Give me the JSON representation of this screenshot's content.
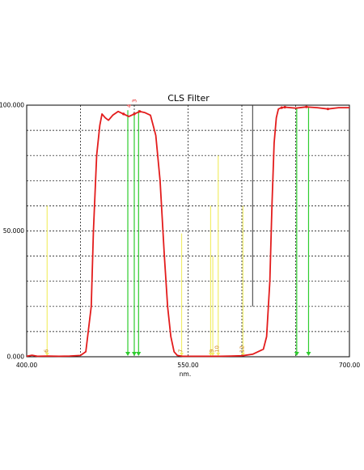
{
  "chart_data": {
    "type": "line",
    "title": "CLS Filter",
    "xlabel": "nm.",
    "ylabel": "",
    "xlim": [
      400,
      700
    ],
    "ylim": [
      0,
      100
    ],
    "x_ticks": [
      400,
      450,
      500,
      550,
      600,
      650,
      700
    ],
    "x_tick_labels": [
      "400.00",
      "550.00",
      "700.00"
    ],
    "x_tick_labels_at": [
      400,
      550,
      700
    ],
    "y_tick_labels": [
      "0.000",
      "50.000",
      "100.000"
    ],
    "y_tick_labels_at": [
      0,
      50,
      100
    ],
    "y_grid": [
      0,
      10,
      20,
      30,
      40,
      50,
      60,
      70,
      80,
      90,
      100
    ],
    "grid": true,
    "colors": {
      "curve": "#e31c1c",
      "green_markers": "#2ecc2e",
      "yellow_markers": "#f2ee6a",
      "grid": "#000000"
    },
    "series": [
      {
        "x": [
          400,
          405,
          410,
          420,
          430,
          440,
          450,
          455,
          460,
          462,
          465,
          468,
          470,
          473,
          476,
          480,
          485,
          490,
          495,
          500,
          505,
          510,
          515,
          520,
          524,
          528,
          531,
          534,
          537,
          540,
          545,
          550,
          560,
          570,
          580,
          590,
          600,
          610,
          620,
          623,
          626,
          628,
          630,
          632,
          634,
          637,
          640,
          650,
          660,
          670,
          680,
          690,
          700
        ],
        "y": [
          0.2,
          0.6,
          0.2,
          0.3,
          0.2,
          0.3,
          0.5,
          2,
          20,
          50,
          80,
          92,
          96.5,
          95,
          94,
          96,
          97.5,
          96.5,
          95.5,
          96.5,
          97.5,
          97,
          96,
          88,
          70,
          40,
          20,
          8,
          2,
          0.5,
          0.2,
          0.2,
          0.2,
          0.2,
          0.2,
          0.3,
          0.4,
          1,
          3,
          8,
          30,
          60,
          85,
          95,
          98.5,
          99,
          99.2,
          98.8,
          99.3,
          99,
          98.5,
          99,
          99
        ]
      }
    ],
    "markers": [
      {
        "color": "green",
        "x": 494,
        "top": 98
      },
      {
        "color": "green",
        "x": 500,
        "top": 97
      },
      {
        "color": "green",
        "x": 504,
        "top": 98
      },
      {
        "color": "green",
        "x": 651,
        "top": 99
      },
      {
        "color": "green",
        "x": 662,
        "top": 99
      },
      {
        "color": "yellow",
        "x": 419,
        "top": 60,
        "label": "6"
      },
      {
        "color": "yellow",
        "x": 544,
        "top": 49,
        "label": "7"
      },
      {
        "color": "yellow",
        "x": 571,
        "top": 60
      },
      {
        "color": "yellow",
        "x": 573,
        "top": 40,
        "label": "9"
      },
      {
        "color": "yellow",
        "x": 578,
        "top": 80,
        "label": "10"
      },
      {
        "color": "yellow",
        "x": 601,
        "top": 60,
        "label": "12"
      }
    ],
    "point_labels": [
      {
        "text": "4",
        "x": 497,
        "y": 99
      },
      {
        "text": "3",
        "x": 502,
        "y": 101
      }
    ],
    "vertical_lines": [
      {
        "x": 610,
        "y_from": 20,
        "y_to": 100
      }
    ]
  }
}
